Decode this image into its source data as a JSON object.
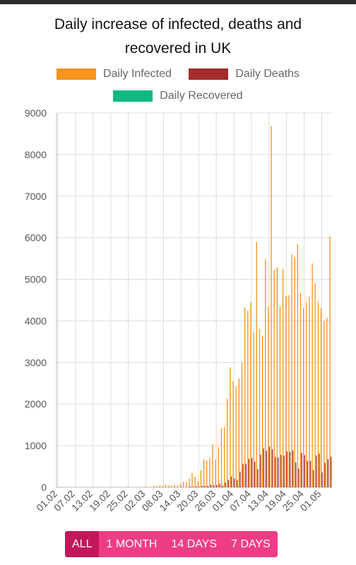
{
  "chart_data": {
    "type": "bar",
    "title": "Daily increase of infected, deaths and recovered in UK",
    "legend_placement": "top",
    "grid": true,
    "ylim": [
      0,
      9000
    ],
    "y_ticks": [
      0,
      1000,
      2000,
      3000,
      4000,
      5000,
      6000,
      7000,
      8000,
      9000
    ],
    "x_tick_labels": [
      "01.02",
      "07.02",
      "13.02",
      "19.02",
      "25.02",
      "02.03",
      "08.03",
      "14.03",
      "20.03",
      "26.03",
      "01.04",
      "07.04",
      "13.04",
      "19.04",
      "25.04",
      "01.05"
    ],
    "start_date": "2020-02-01",
    "colors": {
      "infected": "#f7931e",
      "deaths": "#a52a2a",
      "recovered": "#10b981"
    },
    "series": [
      {
        "name": "Daily Infected",
        "values": [
          0,
          0,
          0,
          0,
          0,
          0,
          0,
          0,
          0,
          0,
          0,
          0,
          0,
          0,
          0,
          0,
          0,
          0,
          0,
          0,
          0,
          0,
          0,
          0,
          0,
          0,
          0,
          0,
          0,
          0,
          13,
          4,
          11,
          34,
          30,
          48,
          43,
          67,
          48,
          46,
          65,
          50,
          83,
          134,
          117,
          208,
          342,
          251,
          152,
          407,
          676,
          643,
          714,
          1035,
          665,
          967,
          1427,
          1452,
          2129,
          2885,
          2546,
          2433,
          2619,
          3009,
          4324,
          4244,
          4450,
          3735,
          5903,
          3802,
          3634,
          5491,
          4344,
          8681,
          5233,
          5288,
          4342,
          5252,
          4603,
          4617,
          5599,
          5525,
          5850,
          4676,
          4301,
          4451,
          4583,
          5386,
          4913,
          4463,
          4309,
          3996,
          4076,
          6032
        ]
      },
      {
        "name": "Daily Deaths",
        "values": [
          0,
          0,
          0,
          0,
          0,
          0,
          0,
          0,
          0,
          0,
          0,
          0,
          0,
          0,
          0,
          0,
          0,
          0,
          0,
          0,
          0,
          0,
          0,
          0,
          0,
          0,
          0,
          0,
          0,
          0,
          0,
          0,
          0,
          0,
          1,
          0,
          1,
          0,
          1,
          1,
          2,
          1,
          10,
          0,
          1,
          21,
          14,
          20,
          16,
          33,
          40,
          33,
          56,
          48,
          54,
          87,
          41,
          115,
          181,
          260,
          209,
          180,
          381,
          563,
          569,
          684,
          708,
          621,
          439,
          786,
          938,
          881,
          980,
          917,
          737,
          717,
          778,
          761,
          861,
          847,
          888,
          596,
          449,
          828,
          773,
          639,
          636,
          413,
          768,
          813,
          360,
          586,
          674,
          739
        ]
      },
      {
        "name": "Daily Recovered",
        "values": []
      }
    ]
  },
  "range_buttons": [
    "ALL",
    "1 MONTH",
    "14 DAYS",
    "7 DAYS"
  ]
}
